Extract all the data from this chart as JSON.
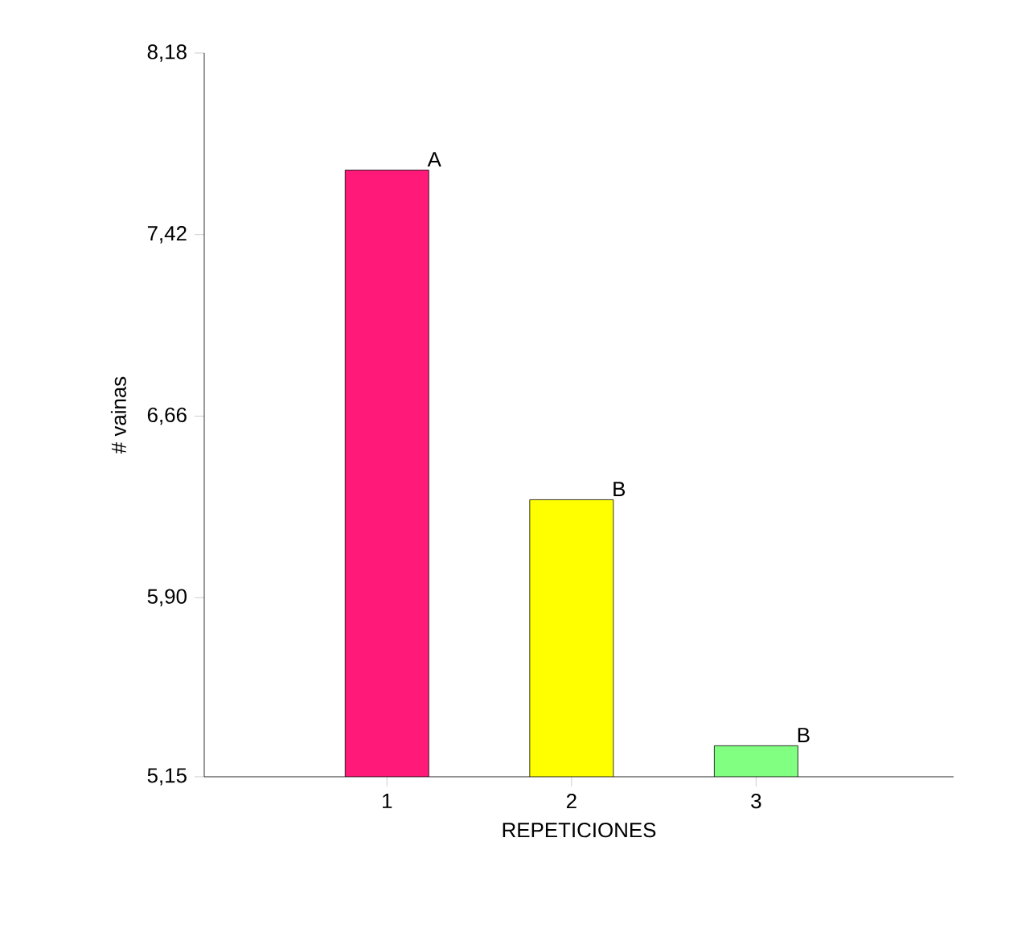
{
  "chart_data": {
    "type": "bar",
    "xlabel": "REPETICIONES",
    "ylabel": "# vainas",
    "categories": [
      "1",
      "2",
      "3"
    ],
    "values": [
      7.69,
      6.31,
      5.28
    ],
    "colors": [
      "#ff1a7a",
      "#ffff00",
      "#80ff80"
    ],
    "ylim": [
      5.15,
      8.18
    ],
    "yticks": [
      {
        "value": 5.15,
        "label": "5,15"
      },
      {
        "value": 5.9,
        "label": "5,90"
      },
      {
        "value": 6.66,
        "label": "6,66"
      },
      {
        "value": 7.42,
        "label": "7,42"
      },
      {
        "value": 8.18,
        "label": "8,18"
      }
    ],
    "annotations": [
      {
        "text": "A",
        "x": "1",
        "y": 7.69
      },
      {
        "text": "B",
        "x": "2",
        "y": 6.31
      },
      {
        "text": "B",
        "x": "3",
        "y": 5.28
      }
    ],
    "grid": false
  }
}
